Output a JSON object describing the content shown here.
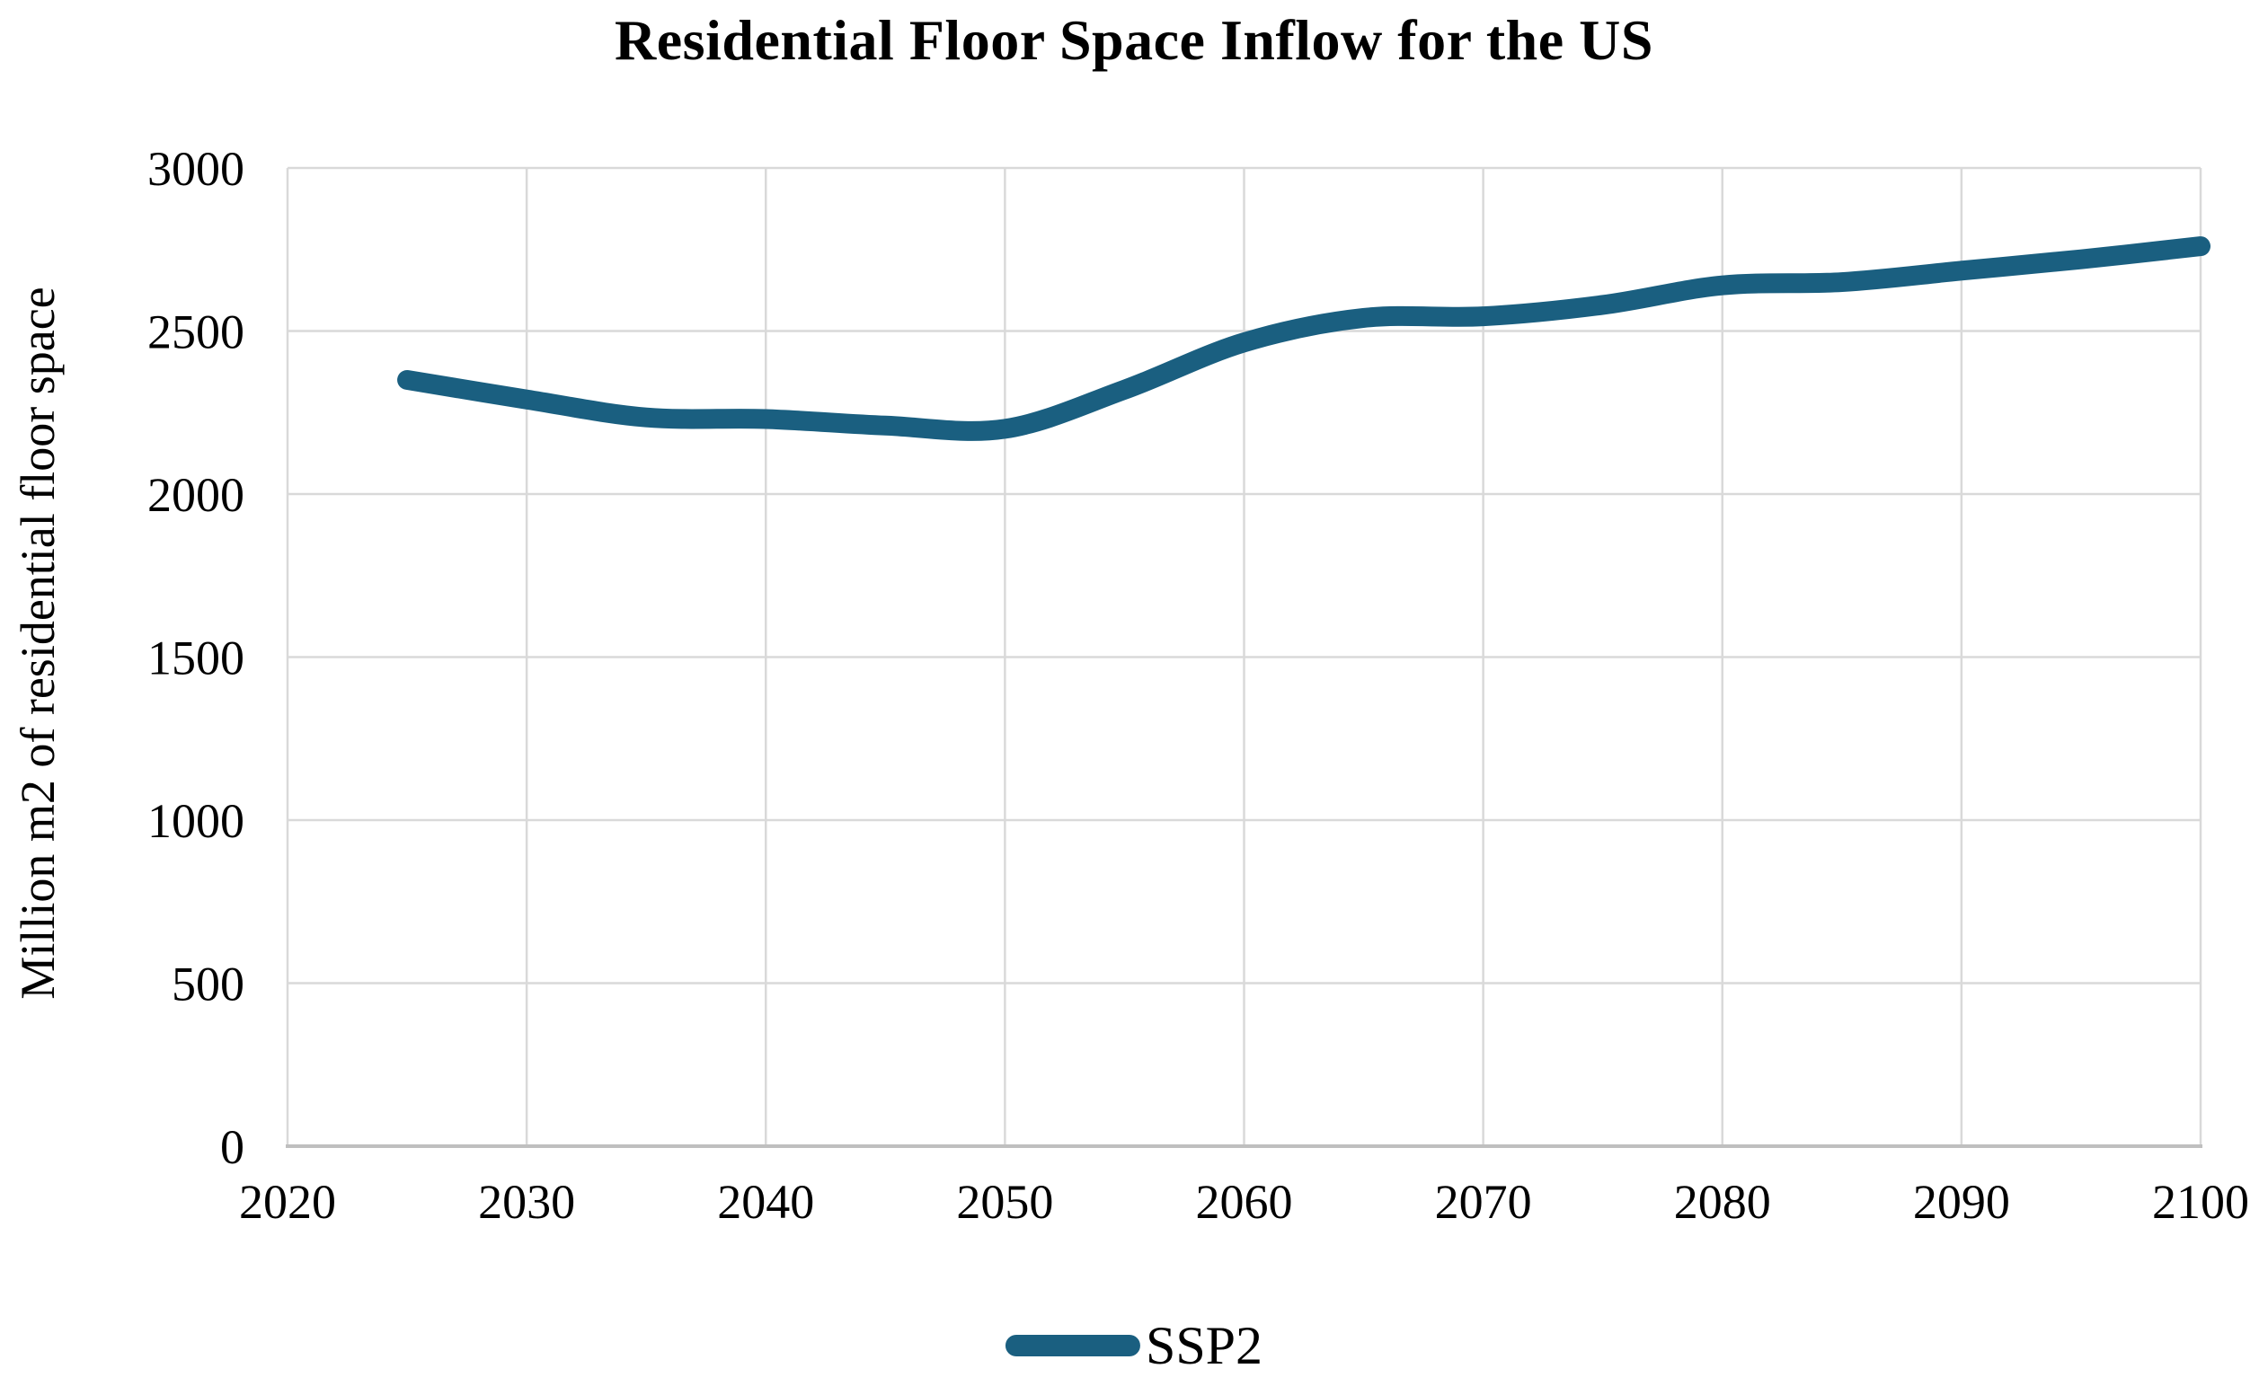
{
  "page": {
    "background": "#ffffff"
  },
  "chart_data": {
    "type": "line",
    "title": "Residential Floor Space Inflow for the US",
    "xlabel": "",
    "ylabel": "Million m2 of residential floor space",
    "xlim": [
      2020,
      2100
    ],
    "ylim": [
      0,
      3000
    ],
    "x_ticks": [
      2020,
      2030,
      2040,
      2050,
      2060,
      2070,
      2080,
      2090,
      2100
    ],
    "y_ticks": [
      0,
      500,
      1000,
      1500,
      2000,
      2500,
      3000
    ],
    "grid": true,
    "legend_position": "bottom-center",
    "series": [
      {
        "name": "SSP2",
        "color": "#1A5F80",
        "x": [
          2025,
          2030,
          2035,
          2040,
          2045,
          2050,
          2055,
          2060,
          2065,
          2070,
          2075,
          2080,
          2085,
          2090,
          2095,
          2100
        ],
        "values": [
          2350,
          2290,
          2235,
          2230,
          2210,
          2200,
          2320,
          2465,
          2540,
          2545,
          2580,
          2640,
          2650,
          2685,
          2720,
          2760
        ]
      }
    ],
    "colors": {
      "line": "#1A5F80",
      "grid": "#D9D9D9",
      "axis": "#BFBFBF",
      "text": "#000000"
    }
  }
}
